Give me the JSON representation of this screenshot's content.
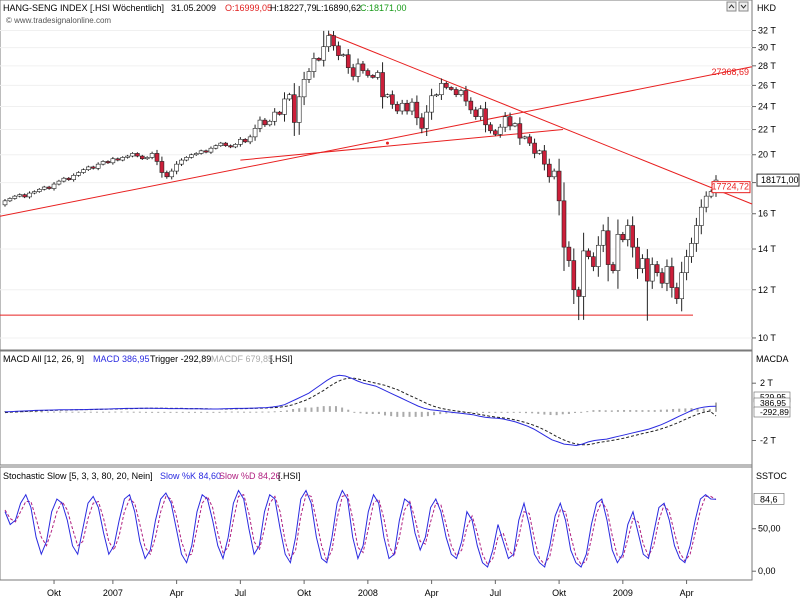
{
  "chart_data": [
    {
      "type": "candlestick",
      "header": {
        "instrument": "HANG-SENG INDEX [.HSI Wöchentlich]",
        "date": "31.05.2009",
        "open_label": "O:16999,05",
        "high_label": "H:18227,79",
        "low_label": "L:16890,62",
        "close_label": "C:18171,00"
      },
      "watermark": "© www.tradesignalonline.com",
      "currency": "HKD",
      "y_ticks": [
        "32 T",
        "30 T",
        "28 T",
        "26 T",
        "24 T",
        "22 T",
        "20 T",
        "18 T",
        "16 T",
        "14 T",
        "12 T",
        "10 T"
      ],
      "y_tick_values": [
        32000,
        30000,
        28000,
        26000,
        24000,
        22000,
        20000,
        18000,
        16000,
        14000,
        12000,
        10000
      ],
      "ylim": [
        9700,
        33300
      ],
      "log_scale": true,
      "last_price_label": "18171,00",
      "trendline_labels": [
        {
          "text": "27368,69",
          "value": 27368.69
        },
        {
          "text": "17724,72",
          "value": 17724.72
        }
      ],
      "support_level": 10900,
      "up_color": "#ffffff",
      "down_color": "#cc1f3a",
      "line_color": "#e82020",
      "weekly_closes": [
        16800,
        16950,
        17100,
        17200,
        17050,
        17300,
        17400,
        17550,
        17700,
        17600,
        17900,
        18100,
        18300,
        18200,
        18500,
        18700,
        18900,
        19100,
        19000,
        19300,
        19500,
        19400,
        19700,
        19600,
        19800,
        19900,
        20100,
        19900,
        19700,
        19800,
        20100,
        19500,
        18700,
        18400,
        18800,
        19300,
        19600,
        19800,
        20000,
        20100,
        20300,
        20200,
        20500,
        20700,
        20900,
        20700,
        20600,
        20800,
        21200,
        21000,
        21400,
        22100,
        22800,
        22400,
        22700,
        23500,
        23300,
        24700,
        25100,
        22600,
        24900,
        26600,
        27400,
        28800,
        28600,
        30100,
        31400,
        30200,
        29100,
        29200,
        27800,
        26900,
        28200,
        27500,
        27000,
        26800,
        27300,
        24900,
        25100,
        24200,
        23600,
        24300,
        23600,
        24400,
        23000,
        22100,
        23500,
        25000,
        25100,
        26200,
        25800,
        25600,
        25100,
        25500,
        24500,
        23700,
        23100,
        23800,
        22400,
        21900,
        21600,
        22200,
        23100,
        22300,
        22500,
        21300,
        21400,
        20900,
        20100,
        20300,
        19300,
        18400,
        18800,
        16800,
        14100,
        13400,
        12000,
        11700,
        13900,
        13600,
        13100,
        14200,
        15000,
        13200,
        12900,
        14800,
        14500,
        15300,
        14100,
        13000,
        13500,
        12400,
        13200,
        12800,
        12300,
        13100,
        12100,
        11600,
        12800,
        13600,
        14300,
        15300,
        16400,
        17100,
        17400,
        18171
      ],
      "x_ticks": [
        {
          "label": "Okt",
          "week": 10
        },
        {
          "label": "2007",
          "week": 22
        },
        {
          "label": "Apr",
          "week": 35
        },
        {
          "label": "Jul",
          "week": 48
        },
        {
          "label": "Okt",
          "week": 61
        },
        {
          "label": "2008",
          "week": 74
        },
        {
          "label": "Apr",
          "week": 87
        },
        {
          "label": "Jul",
          "week": 100
        },
        {
          "label": "Okt",
          "week": 113
        },
        {
          "label": "2009",
          "week": 126
        },
        {
          "label": "Apr",
          "week": 139
        }
      ]
    },
    {
      "type": "line",
      "legend_prefix": "MACD All [12, 26, 9]",
      "legend_macd": "MACD 386,95",
      "legend_trigger": "Trigger -292,89",
      "legend_macdf": "MACDF 679,85",
      "legend_suffix": "[.HSI]",
      "axis_label": "MACDA",
      "y_ticks": [
        "2 T",
        "-2 T"
      ],
      "y_tick_values": [
        2000,
        -2000
      ],
      "ylim": [
        -3500,
        3200
      ],
      "value_labels": [
        "529,95",
        "386,95",
        "-292,89"
      ],
      "series": [
        {
          "name": "MACD",
          "color": "#2a2ae0",
          "values": [
            0,
            20,
            40,
            60,
            80,
            100,
            110,
            120,
            130,
            140,
            150,
            150,
            160,
            160,
            170,
            180,
            190,
            200,
            220,
            230,
            240,
            240,
            250,
            250,
            250,
            240,
            240,
            230,
            230,
            230,
            220,
            220,
            210,
            200,
            200,
            200,
            220,
            230,
            240,
            240,
            250,
            260,
            280,
            300,
            340,
            400,
            500,
            700,
            900,
            1100,
            1300,
            1600,
            1900,
            2200,
            2450,
            2550,
            2500,
            2350,
            2150,
            2000,
            1900,
            1800,
            1600,
            1400,
            1200,
            1000,
            800,
            600,
            400,
            250,
            150,
            100,
            50,
            0,
            -50,
            -100,
            -150,
            -200,
            -300,
            -380,
            -420,
            -450,
            -500,
            -600,
            -700,
            -850,
            -1000,
            -1200,
            -1450,
            -1700,
            -1950,
            -2100,
            -2250,
            -2300,
            -2350,
            -2250,
            -2100,
            -2000,
            -1950,
            -1900,
            -1800,
            -1700,
            -1600,
            -1500,
            -1400,
            -1300,
            -1200,
            -1050,
            -900,
            -700,
            -500,
            -300,
            -100,
            100,
            250,
            330,
            380,
            386.95
          ]
        },
        {
          "name": "Trigger",
          "color": "#222222",
          "dashed": true,
          "values": [
            -50,
            -20,
            0,
            20,
            40,
            60,
            80,
            100,
            110,
            120,
            130,
            140,
            150,
            160,
            160,
            170,
            180,
            190,
            200,
            210,
            220,
            230,
            240,
            250,
            250,
            250,
            250,
            240,
            240,
            240,
            230,
            230,
            220,
            210,
            200,
            200,
            200,
            210,
            220,
            230,
            240,
            250,
            260,
            280,
            300,
            340,
            400,
            500,
            650,
            800,
            1000,
            1250,
            1500,
            1800,
            2050,
            2250,
            2350,
            2350,
            2250,
            2150,
            2050,
            1950,
            1850,
            1700,
            1550,
            1350,
            1150,
            950,
            750,
            550,
            380,
            260,
            170,
            100,
            40,
            -20,
            -80,
            -140,
            -220,
            -300,
            -360,
            -410,
            -460,
            -540,
            -640,
            -760,
            -900,
            -1060,
            -1260,
            -1480,
            -1720,
            -1930,
            -2100,
            -2220,
            -2300,
            -2300,
            -2220,
            -2130,
            -2060,
            -2000,
            -1920,
            -1830,
            -1730,
            -1620,
            -1520,
            -1420,
            -1320,
            -1200,
            -1060,
            -900,
            -720,
            -520,
            -340,
            -160,
            -30,
            60,
            -292.89
          ]
        },
        {
          "name": "MACDF",
          "color": "#aaaaaa",
          "kind": "histogram",
          "values": [
            50,
            40,
            40,
            40,
            40,
            40,
            30,
            20,
            20,
            20,
            20,
            10,
            10,
            0,
            10,
            10,
            10,
            10,
            20,
            20,
            20,
            10,
            10,
            0,
            0,
            -10,
            -10,
            -10,
            -10,
            -10,
            -10,
            -10,
            -10,
            -10,
            0,
            0,
            20,
            20,
            20,
            10,
            10,
            10,
            20,
            20,
            40,
            60,
            100,
            200,
            250,
            300,
            300,
            350,
            400,
            400,
            400,
            300,
            150,
            0,
            -100,
            -150,
            -150,
            -150,
            -250,
            -300,
            -350,
            -350,
            -350,
            -350,
            -350,
            -300,
            -230,
            -160,
            -120,
            -100,
            -90,
            -80,
            -70,
            -60,
            -80,
            -80,
            -60,
            -40,
            -40,
            -60,
            -60,
            -90,
            -100,
            -140,
            -190,
            -220,
            -230,
            -170,
            -150,
            -80,
            -50,
            50,
            120,
            130,
            110,
            100,
            120,
            130,
            130,
            120,
            120,
            120,
            120,
            150,
            160,
            200,
            220,
            240,
            260,
            270,
            230,
            190,
            679.85
          ]
        }
      ]
    },
    {
      "type": "line",
      "legend_prefix": "Stochastic Slow [5, 3, 3, 80, 20, Nein]",
      "legend_k": "Slow %K 84,60",
      "legend_d": "Slow %D 84,26",
      "legend_suffix": "[.HSI]",
      "axis_label": "SSTOC",
      "y_ticks": [
        "50,00",
        "0,00"
      ],
      "y_tick_values": [
        50,
        0
      ],
      "ylim": [
        -8,
        105
      ],
      "value_label": "84,6",
      "series": [
        {
          "name": "Slow %K",
          "color": "#2a2ae0",
          "values": [
            70,
            55,
            60,
            80,
            90,
            75,
            40,
            20,
            35,
            70,
            85,
            80,
            60,
            30,
            20,
            50,
            80,
            88,
            75,
            45,
            20,
            30,
            60,
            85,
            90,
            70,
            35,
            15,
            25,
            60,
            85,
            92,
            80,
            50,
            20,
            10,
            30,
            70,
            90,
            85,
            60,
            30,
            15,
            40,
            80,
            95,
            85,
            50,
            20,
            30,
            70,
            90,
            85,
            50,
            20,
            10,
            40,
            85,
            95,
            80,
            40,
            15,
            10,
            40,
            80,
            95,
            85,
            40,
            15,
            30,
            70,
            90,
            80,
            40,
            15,
            20,
            60,
            85,
            80,
            45,
            25,
            40,
            75,
            85,
            70,
            40,
            20,
            15,
            35,
            70,
            60,
            30,
            10,
            5,
            25,
            55,
            35,
            15,
            20,
            60,
            80,
            55,
            20,
            10,
            5,
            30,
            65,
            80,
            60,
            25,
            10,
            5,
            20,
            55,
            80,
            85,
            60,
            25,
            10,
            20,
            55,
            70,
            45,
            20,
            15,
            45,
            75,
            80,
            60,
            30,
            15,
            10,
            30,
            60,
            85,
            90,
            85,
            84.6
          ]
        },
        {
          "name": "Slow %D",
          "color": "#b02080",
          "dashed": true,
          "values": [
            72,
            62,
            58,
            70,
            82,
            82,
            62,
            40,
            30,
            48,
            70,
            82,
            72,
            50,
            30,
            35,
            62,
            80,
            82,
            62,
            35,
            25,
            42,
            70,
            85,
            80,
            55,
            28,
            20,
            40,
            70,
            88,
            85,
            65,
            35,
            18,
            20,
            50,
            80,
            88,
            75,
            45,
            22,
            28,
            60,
            88,
            90,
            68,
            35,
            25,
            50,
            80,
            88,
            70,
            35,
            15,
            25,
            65,
            90,
            88,
            60,
            30,
            12,
            25,
            62,
            88,
            90,
            62,
            28,
            22,
            50,
            80,
            85,
            62,
            30,
            18,
            40,
            72,
            82,
            62,
            35,
            32,
            58,
            80,
            78,
            55,
            30,
            18,
            25,
            52,
            65,
            45,
            20,
            8,
            15,
            40,
            45,
            25,
            18,
            40,
            70,
            68,
            38,
            15,
            8,
            18,
            48,
            72,
            70,
            42,
            18,
            8,
            12,
            38,
            68,
            82,
            72,
            42,
            18,
            15,
            38,
            62,
            58,
            32,
            18,
            30,
            60,
            78,
            70,
            45,
            22,
            12,
            20,
            45,
            72,
            88,
            88,
            84.26
          ]
        }
      ]
    }
  ]
}
